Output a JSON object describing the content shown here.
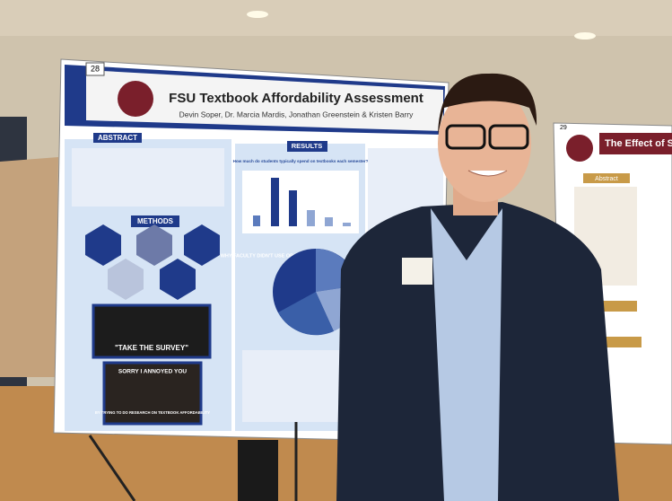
{
  "poster": {
    "number": "28",
    "title": "FSU Textbook Affordability Assessment",
    "authors": "Devin Soper, Dr. Marcia Mardis, Jonathan Greenstein & Kristen Barry",
    "sections": {
      "abstract": "ABSTRACT",
      "results": "RESULTS",
      "methods": "METHODS"
    },
    "chart_question": "How much do students typically spend on textbooks each semester?",
    "pie_title": "WHY FACULTY DIDN'T USE OR CREATE OER",
    "meme_1": "\"TAKE THE SURVEY\"",
    "meme_2_top": "SORRY I ANNOYED YOU",
    "meme_2_bottom": "BY TRYING TO DO RESEARCH ON TEXTBOOK AFFORDABILITY"
  },
  "right_poster": {
    "number": "29",
    "title": "The Effect of S",
    "section": "Abstract"
  }
}
